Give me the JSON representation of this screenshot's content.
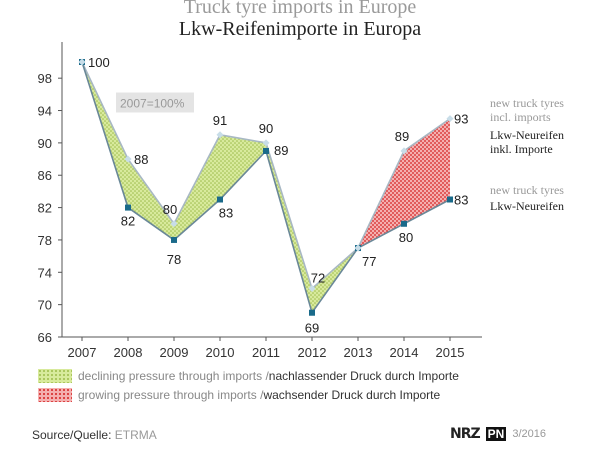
{
  "titles": {
    "en": "Truck tyre imports in Europe",
    "de": "Lkw-Reifenimporte in Europa"
  },
  "chart_data": {
    "type": "line",
    "categories": [
      "2007",
      "2008",
      "2009",
      "2010",
      "2011",
      "2012",
      "2013",
      "2014",
      "2015"
    ],
    "ylim": [
      66,
      100
    ],
    "yticks": [
      66,
      70,
      74,
      78,
      82,
      86,
      90,
      94,
      98
    ],
    "grid": false,
    "base_note": "2007=100%",
    "series": [
      {
        "key": "incl",
        "name_en": "new truck tyres incl. imports",
        "name_de": "Lkw-Neureifen inkl. Importe",
        "values": [
          100,
          88,
          80,
          91,
          90,
          72,
          77,
          89,
          93
        ],
        "color": "#aaaaaa"
      },
      {
        "key": "new",
        "name_en": "new truck tyres",
        "name_de": "Lkw-Neureifen",
        "values": [
          100,
          82,
          78,
          83,
          89,
          69,
          77,
          80,
          83
        ],
        "color": "#1a6a8a"
      }
    ],
    "legend": {
      "declining": {
        "en": "declining pressure through imports",
        "de": "nachlassender Druck durch Importe",
        "color": "#c8e08a"
      },
      "growing": {
        "en": "growing pressure through imports",
        "de": "wachsender Druck durch Importe",
        "color": "#e04848"
      }
    }
  },
  "series_labels": {
    "incl_en_1": "new truck tyres",
    "incl_en_2": "incl. imports",
    "incl_de_1": "Lkw-Neureifen",
    "incl_de_2": "inkl. Importe",
    "new_en": "new truck tyres",
    "new_de": "Lkw-Neureifen"
  },
  "footer": {
    "source_en": "Source",
    "source_de": "Quelle:",
    "source_name": "ETRMA",
    "logo": "NRZ",
    "pn": "PN",
    "date": "3/2016"
  }
}
